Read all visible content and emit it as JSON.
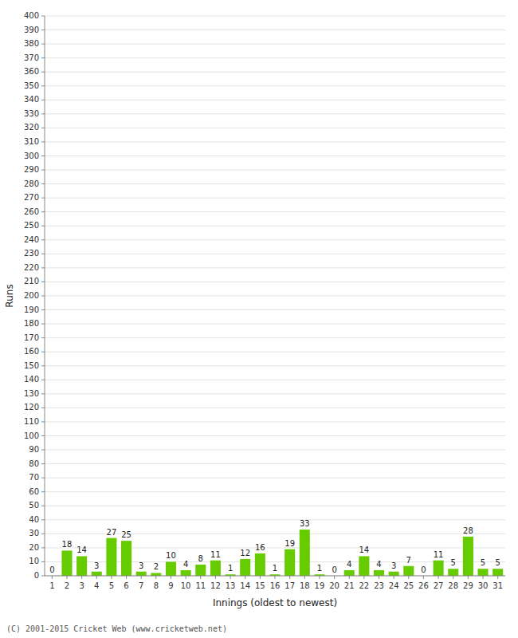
{
  "chart_data": {
    "type": "bar",
    "x_label": "Innings (oldest to newest)",
    "y_label": "Runs",
    "categories": [
      "1",
      "2",
      "3",
      "4",
      "5",
      "6",
      "7",
      "8",
      "9",
      "10",
      "11",
      "12",
      "13",
      "14",
      "15",
      "16",
      "17",
      "18",
      "19",
      "20",
      "21",
      "22",
      "23",
      "24",
      "25",
      "26",
      "27",
      "28",
      "29",
      "30",
      "31"
    ],
    "values": [
      0,
      18,
      14,
      3,
      27,
      25,
      3,
      2,
      10,
      4,
      8,
      11,
      1,
      12,
      16,
      1,
      19,
      33,
      1,
      0,
      4,
      14,
      4,
      3,
      7,
      0,
      11,
      5,
      28,
      5,
      5
    ],
    "color": "#66cc00",
    "ylim": [
      0,
      400
    ],
    "yticks": [
      0,
      10,
      20,
      30,
      40,
      50,
      60,
      70,
      80,
      90,
      100,
      110,
      120,
      130,
      140,
      150,
      160,
      170,
      180,
      190,
      200,
      210,
      220,
      230,
      240,
      250,
      260,
      270,
      280,
      290,
      300,
      310,
      320,
      330,
      340,
      350,
      360,
      370,
      380,
      390,
      400
    ],
    "grid": true,
    "data_labels": true,
    "annotations": [
      "(C) 2001-2015 Cricket Web (www.cricketweb.net)"
    ]
  }
}
